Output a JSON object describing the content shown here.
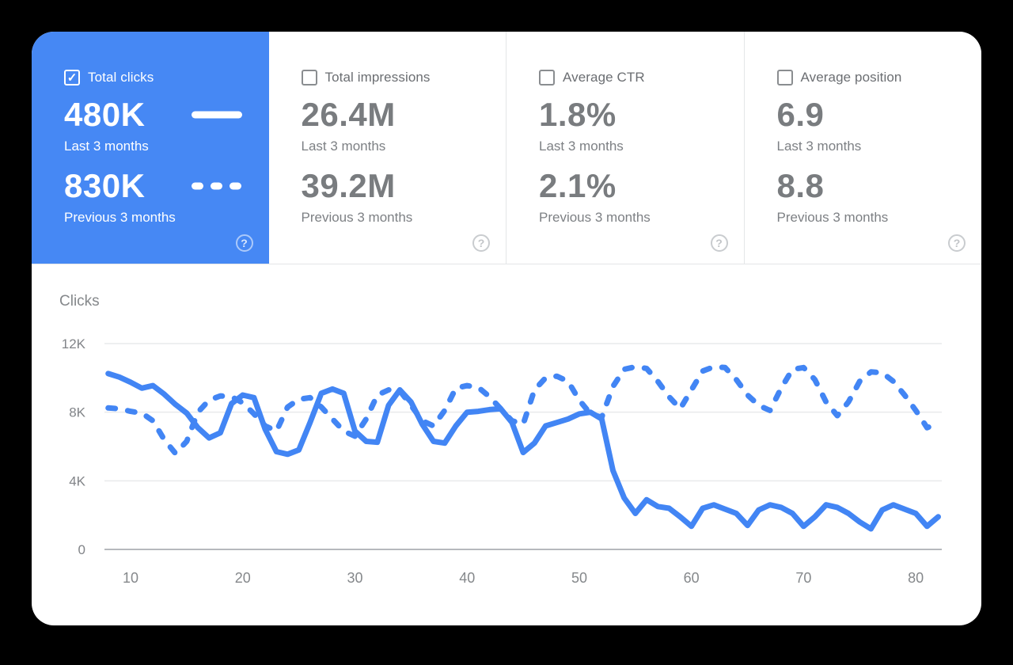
{
  "colors": {
    "background": "#000000",
    "card_bg": "#ffffff",
    "accent_blue": "#4285f4",
    "selected_tile_bg": "#4688f4",
    "metric_gray": "#797c7f",
    "gridline": "#e9eaec",
    "axis_line": "#b6b9bd"
  },
  "icons": {
    "checkmark": "✓",
    "help": "?"
  },
  "cards": [
    {
      "id": "total-clicks",
      "label": "Total clicks",
      "checked": true,
      "selected": true,
      "current": {
        "value": "480K",
        "period": "Last 3 months",
        "legend": "solid-line"
      },
      "previous": {
        "value": "830K",
        "period": "Previous 3 months",
        "legend": "dashed-line"
      }
    },
    {
      "id": "total-impressions",
      "label": "Total impressions",
      "checked": false,
      "selected": false,
      "current": {
        "value": "26.4M",
        "period": "Last 3 months"
      },
      "previous": {
        "value": "39.2M",
        "period": "Previous 3 months"
      }
    },
    {
      "id": "average-ctr",
      "label": "Average CTR",
      "checked": false,
      "selected": false,
      "current": {
        "value": "1.8%",
        "period": "Last 3 months"
      },
      "previous": {
        "value": "2.1%",
        "period": "Previous 3 months"
      }
    },
    {
      "id": "average-position",
      "label": "Average position",
      "checked": false,
      "selected": false,
      "current": {
        "value": "6.9",
        "period": "Last 3 months"
      },
      "previous": {
        "value": "8.8",
        "period": "Previous 3 months"
      }
    }
  ],
  "chart_data": {
    "type": "line",
    "title": "Clicks",
    "ylabel": "Clicks",
    "xlim": [
      7.5,
      82.5
    ],
    "ylim": [
      0,
      12000
    ],
    "grid": true,
    "legend_position": "none",
    "xticks": [
      10,
      20,
      30,
      40,
      50,
      60,
      70,
      80
    ],
    "yticks": [
      {
        "v": 0,
        "label": "0"
      },
      {
        "v": 4000,
        "label": "4K"
      },
      {
        "v": 8000,
        "label": "8K"
      },
      {
        "v": 12000,
        "label": "12K"
      }
    ],
    "x": [
      8,
      9,
      10,
      11,
      12,
      13,
      14,
      15,
      16,
      17,
      18,
      19,
      20,
      21,
      22,
      23,
      24,
      25,
      26,
      27,
      28,
      29,
      30,
      31,
      32,
      33,
      34,
      35,
      36,
      37,
      38,
      39,
      40,
      41,
      42,
      43,
      44,
      45,
      46,
      47,
      48,
      49,
      50,
      51,
      52,
      53,
      54,
      55,
      56,
      57,
      58,
      59,
      60,
      61,
      62,
      63,
      64,
      65,
      66,
      67,
      68,
      69,
      70,
      71,
      72,
      73,
      74,
      75,
      76,
      77,
      78,
      79,
      80,
      81,
      82
    ],
    "series": [
      {
        "name": "Last 3 months",
        "style": "solid",
        "values": [
          10250,
          10050,
          9750,
          9400,
          9550,
          9050,
          8450,
          7950,
          7100,
          6500,
          6800,
          8500,
          9000,
          8850,
          7000,
          5700,
          5550,
          5800,
          7400,
          9100,
          9350,
          9100,
          6900,
          6300,
          6250,
          8400,
          9300,
          8600,
          7300,
          6300,
          6200,
          7200,
          8000,
          8050,
          8150,
          8200,
          7400,
          5650,
          6200,
          7200,
          7400,
          7600,
          7900,
          8000,
          7600,
          4600,
          3000,
          2100,
          2900,
          2500,
          2400,
          1900,
          1350,
          2400,
          2600,
          2350,
          2100,
          1400,
          2300,
          2600,
          2450,
          2100,
          1350,
          1900,
          2600,
          2450,
          2100,
          1600,
          1200,
          2300,
          2600,
          2350,
          2100,
          1350,
          1900
        ]
      },
      {
        "name": "Previous 3 months",
        "style": "dashed",
        "values": [
          8250,
          8200,
          8050,
          7950,
          7500,
          6400,
          5600,
          6300,
          8000,
          8700,
          8950,
          8900,
          8550,
          7900,
          7200,
          6900,
          8300,
          8750,
          8850,
          8300,
          7600,
          6900,
          6600,
          7600,
          9000,
          9300,
          9250,
          8400,
          7500,
          7200,
          8100,
          9400,
          9550,
          9450,
          8900,
          8200,
          7500,
          7300,
          9300,
          10000,
          10100,
          9800,
          8700,
          7900,
          7700,
          9500,
          10500,
          10650,
          10550,
          9800,
          8900,
          8200,
          9300,
          10400,
          10650,
          10600,
          9900,
          9000,
          8400,
          8100,
          9400,
          10500,
          10600,
          9900,
          8600,
          7800,
          8600,
          9800,
          10350,
          10300,
          9800,
          9000,
          8100,
          7100,
          7350
        ]
      }
    ]
  }
}
